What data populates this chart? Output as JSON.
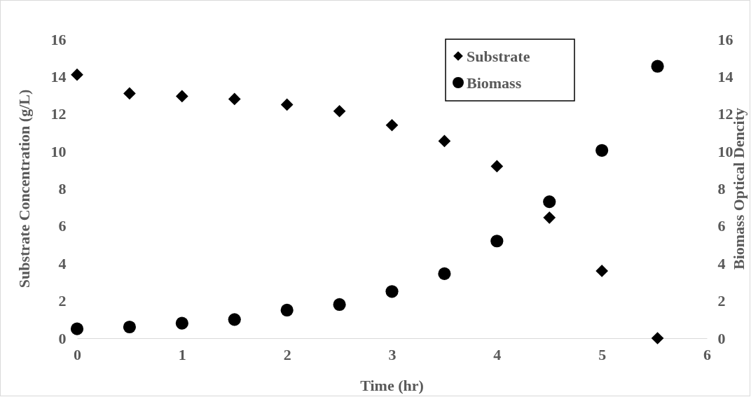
{
  "chart_data": {
    "type": "scatter",
    "xlabel": "Time (hr)",
    "ylabel": "Substrate Concentration (g/L)",
    "y2label": "Biomass Optical Dencity",
    "xlim": [
      0,
      6
    ],
    "xticks": [
      0,
      1,
      2,
      3,
      4,
      5,
      6
    ],
    "ylim": [
      0,
      16
    ],
    "yticks": [
      0,
      2,
      4,
      6,
      8,
      10,
      12,
      14,
      16
    ],
    "y2lim": [
      0,
      16
    ],
    "y2ticks": [
      0,
      2,
      4,
      6,
      8,
      10,
      12,
      14,
      16
    ],
    "legend": "top right",
    "grid": false,
    "series": [
      {
        "name": "Substrate",
        "color": "#000000",
        "marker": "diamond",
        "x": [
          0,
          0.5,
          1,
          1.5,
          2,
          2.5,
          3,
          3.5,
          4,
          4.5,
          5,
          5.53
        ],
        "values": [
          14.1,
          13.1,
          12.95,
          12.8,
          12.5,
          12.15,
          11.4,
          10.55,
          9.2,
          6.45,
          3.6,
          0
        ]
      },
      {
        "name": "Biomass",
        "color": "#000000",
        "marker": "circle",
        "axis": "y2",
        "x": [
          0,
          0.5,
          1,
          1.5,
          2,
          2.5,
          3,
          3.5,
          4,
          4.5,
          5,
          5.53
        ],
        "values": [
          0.5,
          0.6,
          0.8,
          1.0,
          1.5,
          1.8,
          2.5,
          3.45,
          5.2,
          7.3,
          10.05,
          14.55
        ]
      }
    ]
  }
}
